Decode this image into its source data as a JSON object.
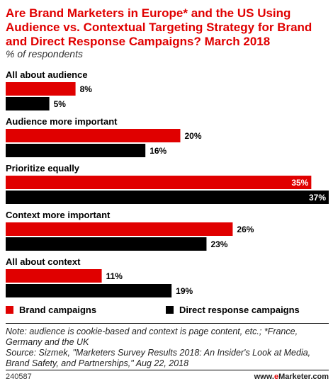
{
  "title": "Are Brand Marketers in Europe* and the US Using Audience vs. Contextual Targeting Strategy for Brand and Direct Response Campaigns? March 2018",
  "subtitle": "% of respondents",
  "chart_data": {
    "type": "bar",
    "orientation": "horizontal",
    "categories": [
      "All about audience",
      "Audience more important",
      "Prioritize equally",
      "Context more important",
      "All about context"
    ],
    "series": [
      {
        "name": "Brand campaigns",
        "color": "#e00000",
        "values": [
          8,
          20,
          35,
          26,
          11
        ],
        "labels": [
          "8%",
          "20%",
          "35%",
          "26%",
          "11%"
        ]
      },
      {
        "name": "Direct response campaigns",
        "color": "#000000",
        "values": [
          5,
          16,
          37,
          23,
          19
        ],
        "labels": [
          "5%",
          "16%",
          "37%",
          "23%",
          "19%"
        ]
      }
    ],
    "xlim": [
      0,
      37
    ],
    "grid": false,
    "legend_position": "bottom"
  },
  "note": "Note: audience is cookie-based and context is page content, etc.; *France, Germany and the UK",
  "source": "Source: Sizmek, \"Marketers Survey Results 2018: An Insider's Look at Media, Brand Safety, and Partnerships,\" Aug 22, 2018",
  "footer": {
    "id": "240587",
    "brand_prefix": "www.",
    "brand_e": "e",
    "brand_rest": "Marketer.com"
  }
}
